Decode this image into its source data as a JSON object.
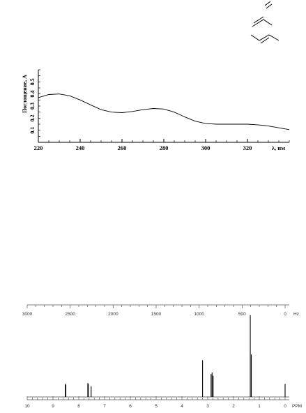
{
  "chart_data": [
    {
      "type": "line",
      "ylabel": "Поглощение, A",
      "xlabel": "λ, нм",
      "x_ticks": [
        220,
        240,
        260,
        280,
        300,
        320
      ],
      "y_ticks": [
        0.1,
        0.2,
        0.3,
        0.4,
        0.5
      ],
      "y_tick_labels": [
        "0.1",
        "0.2",
        "0.3",
        "0.4",
        "0.5"
      ],
      "xlim": [
        220,
        340
      ],
      "ylim": [
        0.0,
        0.6
      ],
      "x": [
        220,
        225,
        230,
        235,
        240,
        245,
        250,
        255,
        260,
        265,
        270,
        275,
        280,
        285,
        290,
        295,
        300,
        305,
        310,
        315,
        320,
        325,
        330,
        335,
        340
      ],
      "y": [
        0.37,
        0.395,
        0.4,
        0.385,
        0.35,
        0.31,
        0.27,
        0.25,
        0.245,
        0.255,
        0.27,
        0.28,
        0.275,
        0.25,
        0.21,
        0.175,
        0.155,
        0.15,
        0.15,
        0.15,
        0.15,
        0.145,
        0.135,
        0.12,
        0.105
      ]
    },
    {
      "type": "line",
      "title": "",
      "hz_label": "Hz",
      "ppm_label": "PPM",
      "hz_ticks": [
        3000,
        2500,
        2000,
        1500,
        1000,
        500,
        0
      ],
      "ppm_ticks": [
        10,
        9,
        8,
        7,
        6,
        5,
        4,
        3,
        2,
        1,
        0
      ],
      "ppm_range": [
        10,
        0
      ],
      "peaks": [
        {
          "ppm": 8.52,
          "intensity": 0.16
        },
        {
          "ppm": 8.5,
          "intensity": 0.15
        },
        {
          "ppm": 7.65,
          "intensity": 0.17
        },
        {
          "ppm": 7.63,
          "intensity": 0.16
        },
        {
          "ppm": 7.52,
          "intensity": 0.13
        },
        {
          "ppm": 3.2,
          "intensity": 0.45
        },
        {
          "ppm": 2.87,
          "intensity": 0.28
        },
        {
          "ppm": 2.83,
          "intensity": 0.3
        },
        {
          "ppm": 2.79,
          "intensity": 0.26
        },
        {
          "ppm": 1.35,
          "intensity": 1.0
        },
        {
          "ppm": 1.31,
          "intensity": 0.52
        },
        {
          "ppm": 0.0,
          "intensity": 0.16
        }
      ]
    }
  ]
}
